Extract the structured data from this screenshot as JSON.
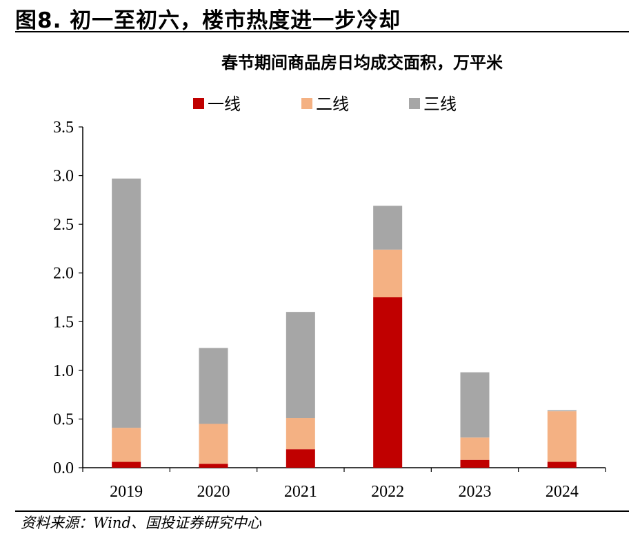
{
  "figure_title": "图8. 初一至初六，楼市热度进一步冷却",
  "source": "资料来源：Wind、国投证券研究中心",
  "chart_data": {
    "type": "bar",
    "stacked": true,
    "title": "春节期间商品房日均成交面积，万平米",
    "xlabel": "",
    "ylabel": "",
    "categories": [
      "2019",
      "2020",
      "2021",
      "2022",
      "2023",
      "2024"
    ],
    "series": [
      {
        "name": "一线",
        "color": "#c00000",
        "values": [
          0.06,
          0.04,
          0.19,
          1.75,
          0.08,
          0.06
        ]
      },
      {
        "name": "二线",
        "color": "#f4b183",
        "values": [
          0.35,
          0.41,
          0.32,
          0.49,
          0.23,
          0.52
        ]
      },
      {
        "name": "三线",
        "color": "#a6a6a6",
        "values": [
          2.56,
          0.78,
          1.09,
          0.45,
          0.67,
          0.01
        ]
      }
    ],
    "ylim": [
      0,
      3.5
    ],
    "yticks": [
      "0.0",
      "0.5",
      "1.0",
      "1.5",
      "2.0",
      "2.5",
      "3.0",
      "3.5"
    ],
    "grid": false,
    "legend_position": "top"
  }
}
